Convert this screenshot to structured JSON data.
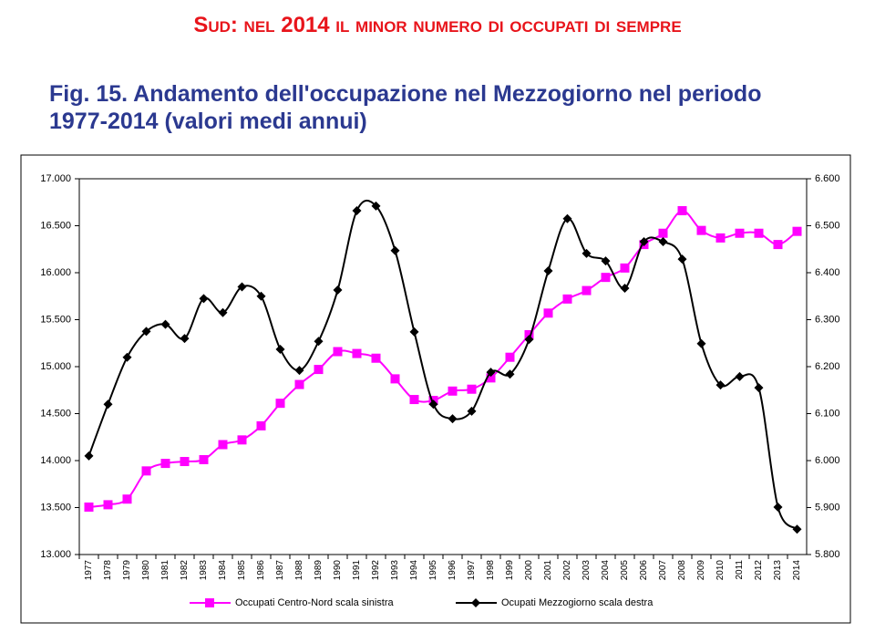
{
  "chart_data": {
    "type": "line",
    "headline": "Sud: nel 2014 il minor numero di occupati di sempre",
    "title": "Fig. 15. Andamento dell'occupazione nel Mezzogiorno nel periodo 1977-2014 (valori medi annui)",
    "categories": [
      "1977",
      "1978",
      "1979",
      "1980",
      "1981",
      "1982",
      "1983",
      "1984",
      "1985",
      "1986",
      "1987",
      "1988",
      "1989",
      "1990",
      "1991",
      "1992",
      "1993",
      "1994",
      "1995",
      "1996",
      "1997",
      "1998",
      "1999",
      "2000",
      "2001",
      "2002",
      "2003",
      "2004",
      "2005",
      "2006",
      "2007",
      "2008",
      "2009",
      "2010",
      "2011",
      "2012",
      "2013",
      "2014"
    ],
    "series": [
      {
        "name": "Occupati Centro-Nord scala sinistra",
        "color": "#ff00ff",
        "marker": "square",
        "axis": "y",
        "values": [
          13505,
          13530,
          13590,
          13890,
          13970,
          13990,
          14010,
          14170,
          14220,
          14370,
          14610,
          14810,
          14970,
          15160,
          15140,
          15090,
          14870,
          14650,
          14640,
          14740,
          14760,
          14880,
          15100,
          15340,
          15570,
          15720,
          15810,
          15950,
          16050,
          16300,
          16420,
          16660,
          16450,
          16370,
          16420,
          16420,
          16300,
          16440
        ]
      },
      {
        "name": "Ocupati Mezzogiorno scala destra",
        "color": "#000000",
        "marker": "diamond",
        "axis": "y2",
        "values": [
          6010,
          6120,
          6220,
          6275,
          6290,
          6260,
          6345,
          6315,
          6370,
          6350,
          6237,
          6192,
          6254,
          6363,
          6532,
          6542,
          6447,
          6274,
          6120,
          6089,
          6105,
          6188,
          6184,
          6258,
          6404,
          6515,
          6441,
          6425,
          6367,
          6466,
          6466,
          6429,
          6249,
          6161,
          6179,
          6155,
          5901,
          5854
        ]
      }
    ],
    "ylim": [
      13000,
      17000
    ],
    "yticks": [
      {
        "value": 13000,
        "label": "13.000"
      },
      {
        "value": 13500,
        "label": "13.500"
      },
      {
        "value": 14000,
        "label": "14.000"
      },
      {
        "value": 14500,
        "label": "14.500"
      },
      {
        "value": 15000,
        "label": "15.000"
      },
      {
        "value": 15500,
        "label": "15.500"
      },
      {
        "value": 16000,
        "label": "16.000"
      },
      {
        "value": 16500,
        "label": "16.500"
      },
      {
        "value": 17000,
        "label": "17.000"
      }
    ],
    "y2lim": [
      5800,
      6600
    ],
    "y2ticks": [
      {
        "value": 5800,
        "label": "5.800"
      },
      {
        "value": 5900,
        "label": "5.900"
      },
      {
        "value": 6000,
        "label": "6.000"
      },
      {
        "value": 6100,
        "label": "6.100"
      },
      {
        "value": 6200,
        "label": "6.200"
      },
      {
        "value": 6300,
        "label": "6.300"
      },
      {
        "value": 6400,
        "label": "6.400"
      },
      {
        "value": 6500,
        "label": "6.500"
      },
      {
        "value": 6600,
        "label": "6.600"
      }
    ],
    "legend": "bottom",
    "grid": false,
    "smooth": true
  }
}
